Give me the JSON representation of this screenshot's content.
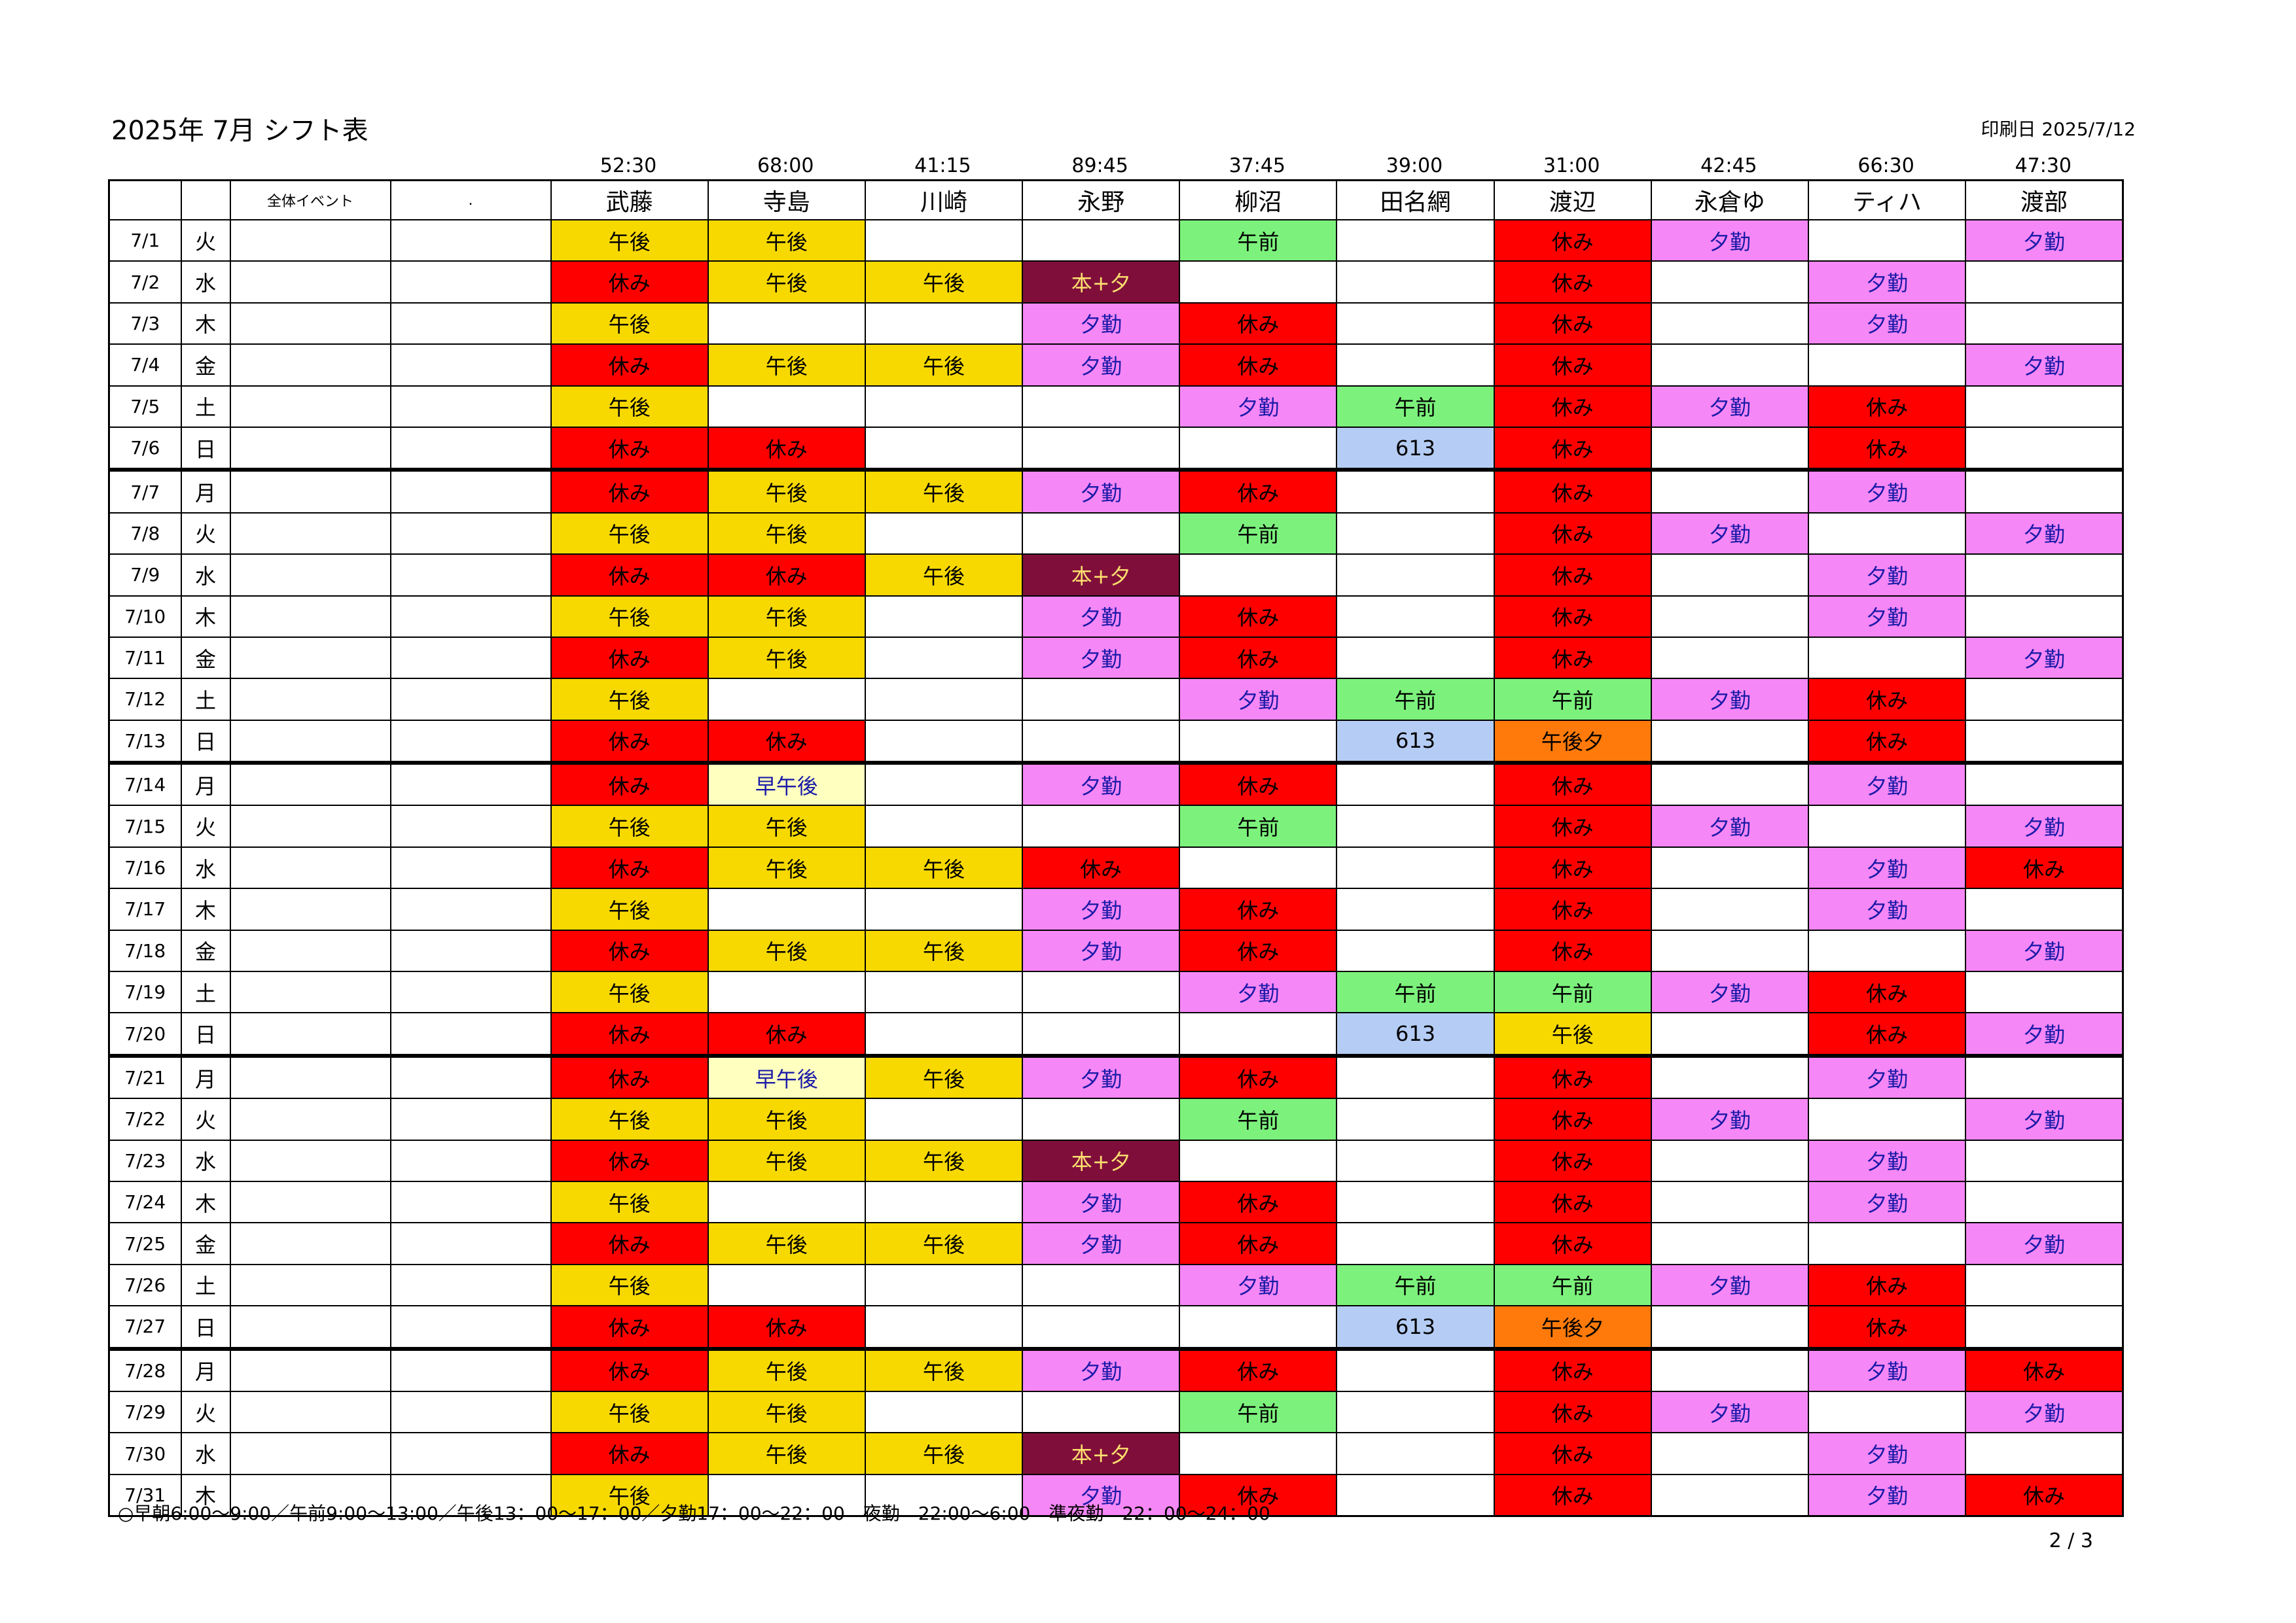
{
  "header": {
    "title": "2025年 7月 シフト表",
    "print_date": "印刷日 2025/7/12"
  },
  "columns": {
    "event_label": "全体イベント",
    "dot_label": ".",
    "people": [
      {
        "name": "武藤",
        "hours": "52:30"
      },
      {
        "name": "寺島",
        "hours": "68:00"
      },
      {
        "name": "川崎",
        "hours": "41:15"
      },
      {
        "name": "永野",
        "hours": "89:45"
      },
      {
        "name": "柳沼",
        "hours": "37:45"
      },
      {
        "name": "田名網",
        "hours": "39:00"
      },
      {
        "name": "渡辺",
        "hours": "31:00"
      },
      {
        "name": "永倉ゆ",
        "hours": "42:45"
      },
      {
        "name": "ティハ",
        "hours": "66:30"
      },
      {
        "name": "渡部",
        "hours": "47:30"
      }
    ]
  },
  "shift_colors": {
    "午後": "#f7d900",
    "休み": "#ff0000",
    "午前": "#7cf27c",
    "夕勤": "#f687f6",
    "本+夕": "#7f0f3a",
    "613": "#b5cdf5",
    "午後夕": "#ff7a0a",
    "早午後": "#ffffc0"
  },
  "rows": [
    {
      "date": "7/1",
      "dow": "火",
      "shifts": [
        "午後",
        "午後",
        "",
        "",
        "午前",
        "",
        "休み",
        "夕勤",
        "",
        "夕勤"
      ]
    },
    {
      "date": "7/2",
      "dow": "水",
      "shifts": [
        "休み",
        "午後",
        "午後",
        "本+夕",
        "",
        "",
        "休み",
        "",
        "夕勤",
        ""
      ]
    },
    {
      "date": "7/3",
      "dow": "木",
      "shifts": [
        "午後",
        "",
        "",
        "夕勤",
        "休み",
        "",
        "休み",
        "",
        "夕勤",
        ""
      ]
    },
    {
      "date": "7/4",
      "dow": "金",
      "shifts": [
        "休み",
        "午後",
        "午後",
        "夕勤",
        "休み",
        "",
        "休み",
        "",
        "",
        "夕勤"
      ]
    },
    {
      "date": "7/5",
      "dow": "土",
      "shifts": [
        "午後",
        "",
        "",
        "",
        "夕勤",
        "午前",
        "休み",
        "夕勤",
        "休み",
        ""
      ]
    },
    {
      "date": "7/6",
      "dow": "日",
      "shifts": [
        "休み",
        "休み",
        "",
        "",
        "",
        "613",
        "休み",
        "",
        "休み",
        ""
      ]
    },
    {
      "date": "7/7",
      "dow": "月",
      "shifts": [
        "休み",
        "午後",
        "午後",
        "夕勤",
        "休み",
        "",
        "休み",
        "",
        "夕勤",
        ""
      ]
    },
    {
      "date": "7/8",
      "dow": "火",
      "shifts": [
        "午後",
        "午後",
        "",
        "",
        "午前",
        "",
        "休み",
        "夕勤",
        "",
        "夕勤"
      ]
    },
    {
      "date": "7/9",
      "dow": "水",
      "shifts": [
        "休み",
        "休み",
        "午後",
        "本+夕",
        "",
        "",
        "休み",
        "",
        "夕勤",
        ""
      ]
    },
    {
      "date": "7/10",
      "dow": "木",
      "shifts": [
        "午後",
        "午後",
        "",
        "夕勤",
        "休み",
        "",
        "休み",
        "",
        "夕勤",
        ""
      ]
    },
    {
      "date": "7/11",
      "dow": "金",
      "shifts": [
        "休み",
        "午後",
        "",
        "夕勤",
        "休み",
        "",
        "休み",
        "",
        "",
        "夕勤"
      ]
    },
    {
      "date": "7/12",
      "dow": "土",
      "shifts": [
        "午後",
        "",
        "",
        "",
        "夕勤",
        "午前",
        "午前",
        "夕勤",
        "休み",
        ""
      ]
    },
    {
      "date": "7/13",
      "dow": "日",
      "shifts": [
        "休み",
        "休み",
        "",
        "",
        "",
        "613",
        "午後夕",
        "",
        "休み",
        ""
      ]
    },
    {
      "date": "7/14",
      "dow": "月",
      "shifts": [
        "休み",
        "早午後",
        "",
        "夕勤",
        "休み",
        "",
        "休み",
        "",
        "夕勤",
        ""
      ]
    },
    {
      "date": "7/15",
      "dow": "火",
      "shifts": [
        "午後",
        "午後",
        "",
        "",
        "午前",
        "",
        "休み",
        "夕勤",
        "",
        "夕勤"
      ]
    },
    {
      "date": "7/16",
      "dow": "水",
      "shifts": [
        "休み",
        "午後",
        "午後",
        "休み",
        "",
        "",
        "休み",
        "",
        "夕勤",
        "休み"
      ]
    },
    {
      "date": "7/17",
      "dow": "木",
      "shifts": [
        "午後",
        "",
        "",
        "夕勤",
        "休み",
        "",
        "休み",
        "",
        "夕勤",
        ""
      ]
    },
    {
      "date": "7/18",
      "dow": "金",
      "shifts": [
        "休み",
        "午後",
        "午後",
        "夕勤",
        "休み",
        "",
        "休み",
        "",
        "",
        "夕勤"
      ]
    },
    {
      "date": "7/19",
      "dow": "土",
      "shifts": [
        "午後",
        "",
        "",
        "",
        "夕勤",
        "午前",
        "午前",
        "夕勤",
        "休み",
        ""
      ]
    },
    {
      "date": "7/20",
      "dow": "日",
      "shifts": [
        "休み",
        "休み",
        "",
        "",
        "",
        "613",
        "午後",
        "",
        "休み",
        "夕勤"
      ]
    },
    {
      "date": "7/21",
      "dow": "月",
      "shifts": [
        "休み",
        "早午後",
        "午後",
        "夕勤",
        "休み",
        "",
        "休み",
        "",
        "夕勤",
        ""
      ]
    },
    {
      "date": "7/22",
      "dow": "火",
      "shifts": [
        "午後",
        "午後",
        "",
        "",
        "午前",
        "",
        "休み",
        "夕勤",
        "",
        "夕勤"
      ]
    },
    {
      "date": "7/23",
      "dow": "水",
      "shifts": [
        "休み",
        "午後",
        "午後",
        "本+夕",
        "",
        "",
        "休み",
        "",
        "夕勤",
        ""
      ]
    },
    {
      "date": "7/24",
      "dow": "木",
      "shifts": [
        "午後",
        "",
        "",
        "夕勤",
        "休み",
        "",
        "休み",
        "",
        "夕勤",
        ""
      ]
    },
    {
      "date": "7/25",
      "dow": "金",
      "shifts": [
        "休み",
        "午後",
        "午後",
        "夕勤",
        "休み",
        "",
        "休み",
        "",
        "",
        "夕勤"
      ]
    },
    {
      "date": "7/26",
      "dow": "土",
      "shifts": [
        "午後",
        "",
        "",
        "",
        "夕勤",
        "午前",
        "午前",
        "夕勤",
        "休み",
        ""
      ]
    },
    {
      "date": "7/27",
      "dow": "日",
      "shifts": [
        "休み",
        "休み",
        "",
        "",
        "",
        "613",
        "午後夕",
        "",
        "休み",
        ""
      ]
    },
    {
      "date": "7/28",
      "dow": "月",
      "shifts": [
        "休み",
        "午後",
        "午後",
        "夕勤",
        "休み",
        "",
        "休み",
        "",
        "夕勤",
        "休み"
      ]
    },
    {
      "date": "7/29",
      "dow": "火",
      "shifts": [
        "午後",
        "午後",
        "",
        "",
        "午前",
        "",
        "休み",
        "夕勤",
        "",
        "夕勤"
      ]
    },
    {
      "date": "7/30",
      "dow": "水",
      "shifts": [
        "休み",
        "午後",
        "午後",
        "本+夕",
        "",
        "",
        "休み",
        "",
        "夕勤",
        ""
      ]
    },
    {
      "date": "7/31",
      "dow": "木",
      "shifts": [
        "午後",
        "",
        "",
        "夕勤",
        "休み",
        "",
        "休み",
        "",
        "夕勤",
        "休み"
      ]
    }
  ],
  "footnote": "○早朝6:00～9:00／午前9:00～13:00／午後13：00～17：00／夕勤17：00～22：00　夜勤　22:00～6:00　準夜勤　22：00～24：00",
  "page_number": "2 / 3"
}
